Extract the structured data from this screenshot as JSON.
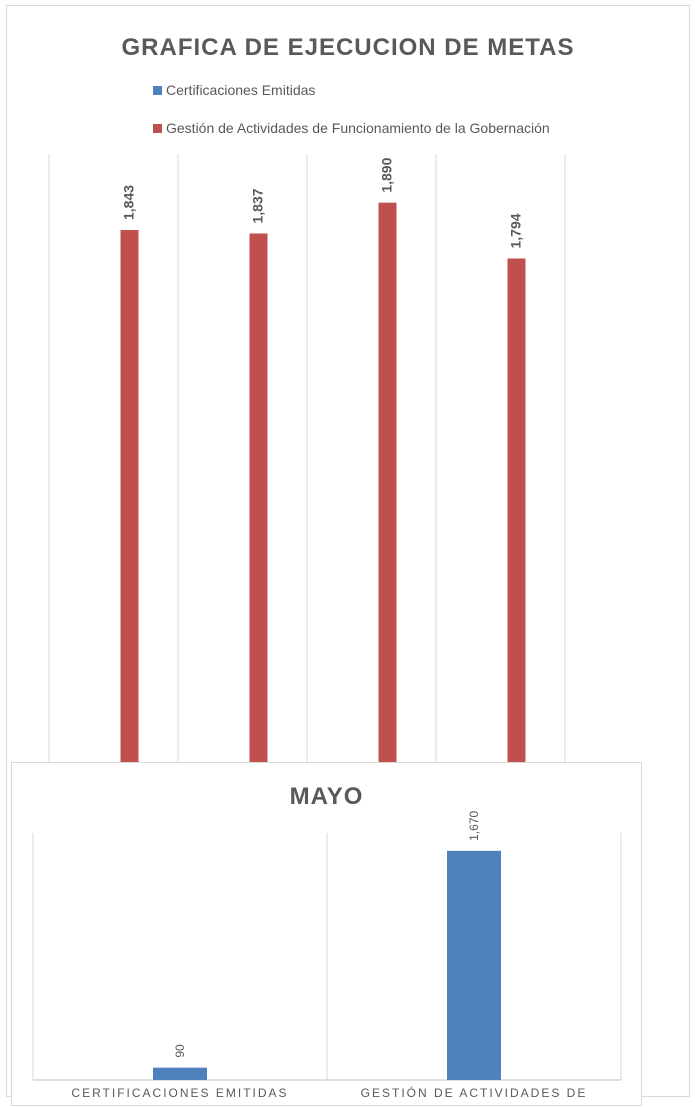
{
  "chart_data": [
    {
      "type": "bar",
      "title": "GRAFICA DE EJECUCION DE METAS",
      "legend_placement": "top",
      "legend": [
        "Certificaciones Emitidas",
        "Gestión de Actividades de Funcionamiento de la Gobernación"
      ],
      "categories": [
        "",
        "",
        "",
        ""
      ],
      "series": [
        {
          "name": "Certificaciones Emitidas",
          "color": "#4f81bd",
          "values": [
            null,
            null,
            null,
            null
          ]
        },
        {
          "name": "Gestión de Actividades de Funcionamiento de la Gobernación",
          "color": "#c0504d",
          "values": [
            1843,
            1837,
            1890,
            1794
          ]
        }
      ],
      "data_labels": [
        "1,843",
        "1,837",
        "1,890",
        "1,794"
      ],
      "ylim": [
        0,
        2000
      ],
      "grid": true
    },
    {
      "type": "bar",
      "title": "MAYO",
      "categories": [
        "CERTIFICACIONES EMITIDAS",
        "GESTIÓN DE ACTIVIDADES DE"
      ],
      "series": [
        {
          "color": "#4f81bd",
          "values": [
            90,
            1670
          ]
        }
      ],
      "data_labels": [
        "90",
        "1,670"
      ],
      "ylim": [
        0,
        1800
      ],
      "grid": true
    }
  ]
}
